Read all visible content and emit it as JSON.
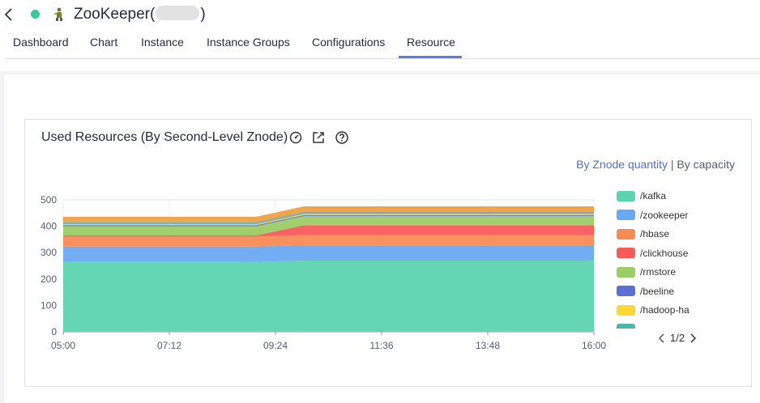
{
  "header": {
    "title_prefix": "ZooKeeper(",
    "title_suffix": ")",
    "status_color": "#3cc89b"
  },
  "tabs": [
    {
      "label": "Dashboard"
    },
    {
      "label": "Chart"
    },
    {
      "label": "Instance"
    },
    {
      "label": "Instance Groups"
    },
    {
      "label": "Configurations"
    },
    {
      "label": "Resource",
      "active": true
    }
  ],
  "card": {
    "title": "Used Resources (By Second-Level Znode)",
    "switch_active": "By Znode quantity",
    "switch_separator": "|",
    "switch_other": "By capacity"
  },
  "pager": {
    "text": "1/2"
  },
  "chart_data": {
    "type": "area",
    "stacked": true,
    "x": [
      "05:00",
      "07:12",
      "09:24",
      "11:36",
      "13:48",
      "16:00"
    ],
    "ylim": [
      0,
      500
    ],
    "yticks": [
      0,
      100,
      200,
      300,
      400,
      500
    ],
    "grid": true,
    "legend_position": "right",
    "change_time": "09:00",
    "plateau_time": "10:00",
    "series": [
      {
        "name": "/kafka",
        "color": "#5dd4b0",
        "before": 265,
        "after": 270
      },
      {
        "name": "/zookeeper",
        "color": "#6aa9f2",
        "before": 58,
        "after": 58
      },
      {
        "name": "/hbase",
        "color": "#f98b55",
        "before": 38,
        "after": 38
      },
      {
        "name": "/clickhouse",
        "color": "#f95b5b",
        "before": 4,
        "after": 38
      },
      {
        "name": "/rmstore",
        "color": "#9ccc65",
        "before": 35,
        "after": 35
      },
      {
        "name": "/beeline",
        "color": "#5b6fd4",
        "before": 4,
        "after": 4
      },
      {
        "name": "/hadoop-ha",
        "color": "#fdd835",
        "before": 4,
        "after": 4
      },
      {
        "name": "",
        "color": "#4db6ac",
        "before": 4,
        "after": 4
      },
      {
        "name": "",
        "color": "#8e9bb0",
        "before": 4,
        "after": 4
      },
      {
        "name": "",
        "color": "#f0a040",
        "before": 20,
        "after": 21
      }
    ]
  }
}
